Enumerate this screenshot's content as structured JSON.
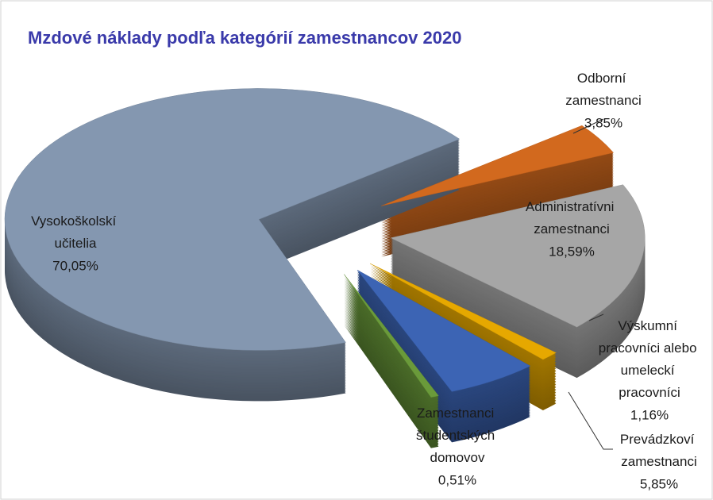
{
  "chart_data": {
    "type": "pie3d",
    "title": "Mzdové náklady podľa kategórií zamestnancov 2020",
    "categories": [
      "Vysokoškolskí učitelia",
      "Odborní zamestnanci",
      "Administratívni zamestnanci",
      "Výskumní pracovníci alebo umeleckí pracovníci",
      "Prevádzkoví zamestnanci",
      "Zamestnanci študentských domovov"
    ],
    "values": [
      70.05,
      3.85,
      18.59,
      1.16,
      5.85,
      0.51
    ],
    "value_labels": [
      "70,05%",
      "3,85%",
      "18,59%",
      "1,16%",
      "5,85%",
      "0,51%"
    ],
    "colors": [
      "#8497b0",
      "#d2691e",
      "#a6a6a6",
      "#e6a800",
      "#3c64b4",
      "#6a9a3a"
    ]
  }
}
